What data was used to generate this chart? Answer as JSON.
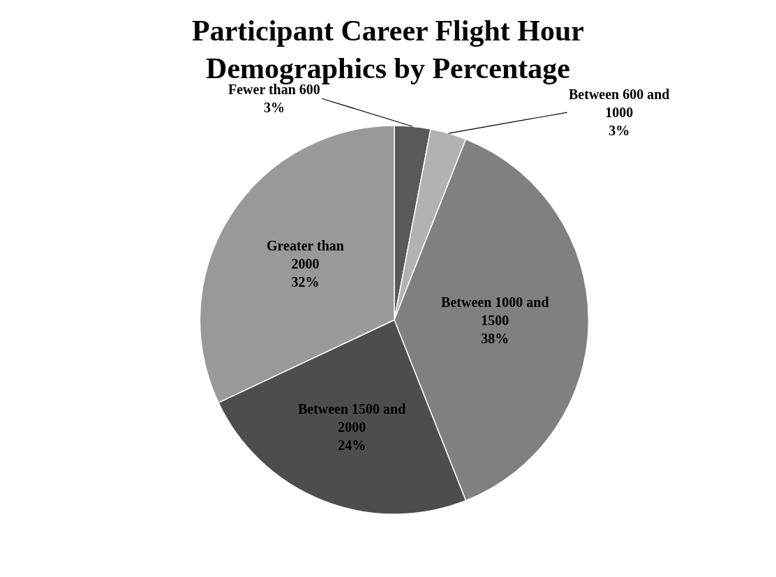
{
  "chart_data": {
    "type": "pie",
    "title": "Participant Career Flight Hour Demographics by Percentage",
    "categories": [
      "Fewer than 600",
      "Between 600 and 1000",
      "Between 1000 and 1500",
      "Between 1500 and 2000",
      "Greater than 2000"
    ],
    "values": [
      3,
      3,
      38,
      24,
      32
    ],
    "value_labels": [
      "3%",
      "3%",
      "38%",
      "24%",
      "32%"
    ],
    "colors": [
      "#595959",
      "#b2b2b2",
      "#808080",
      "#4d4d4d",
      "#999999"
    ],
    "legend": false
  }
}
